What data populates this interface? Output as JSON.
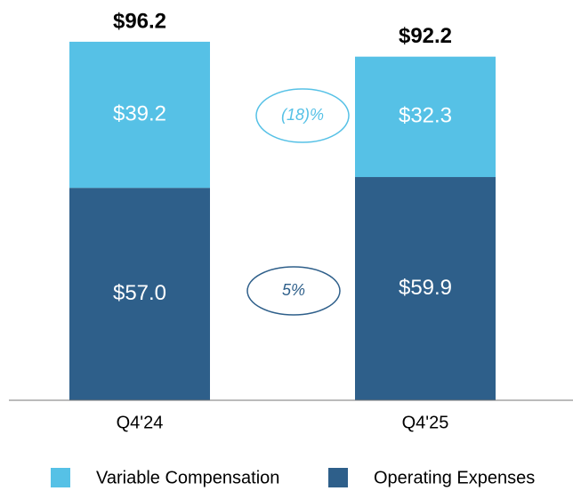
{
  "chart_data": {
    "type": "stacked_bar",
    "categories": [
      "Q4'24",
      "Q4'25"
    ],
    "series": [
      {
        "name": "Variable Compensation",
        "color": "#56c1e6",
        "values": [
          39.2,
          32.3
        ],
        "value_labels": [
          "$39.2",
          "$32.3"
        ]
      },
      {
        "name": "Operating Expenses",
        "color": "#2e5f8a",
        "values": [
          57.0,
          59.9
        ],
        "value_labels": [
          "$57.0",
          "$59.9"
        ]
      }
    ],
    "totals": {
      "values": [
        96.2,
        92.2
      ],
      "value_labels": [
        "$96.2",
        "$92.2"
      ]
    },
    "annotations": [
      "(18)%",
      "5%"
    ],
    "ylim": [
      0,
      100
    ],
    "legend": "bottom"
  }
}
